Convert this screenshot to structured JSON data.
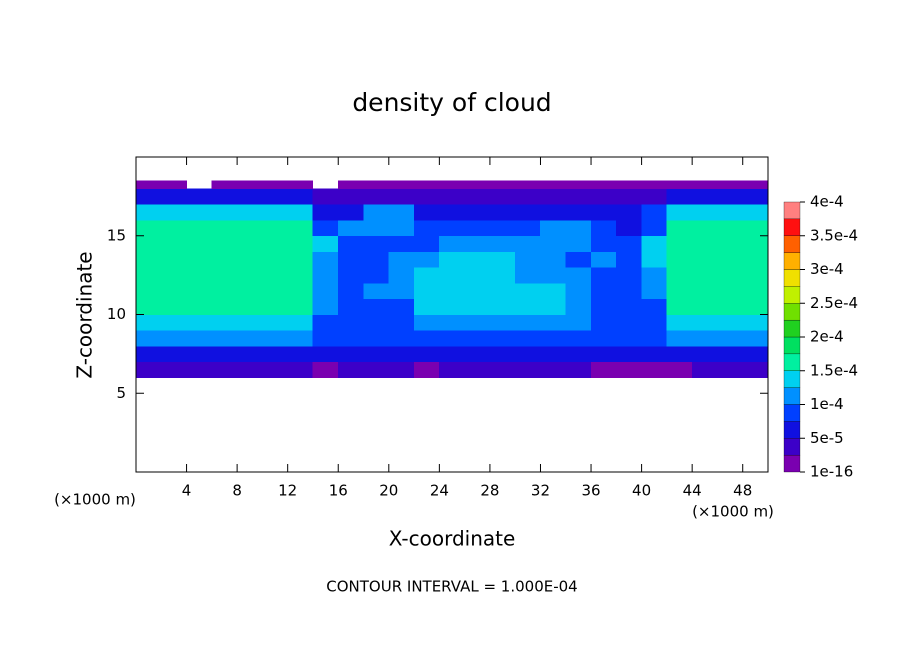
{
  "chart_data": {
    "type": "contour",
    "title": "density of cloud",
    "x_label": "X-coordinate",
    "y_label": "Z-coordinate",
    "x_unit": "(×1000 m)",
    "y_unit": "(×1000 m)",
    "footer": "CONTOUR INTERVAL = 1.000E-04",
    "xlim": [
      0,
      50
    ],
    "ylim": [
      0,
      20
    ],
    "xticks": [
      4,
      8,
      12,
      16,
      20,
      24,
      28,
      32,
      36,
      40,
      44,
      48
    ],
    "yticks": [
      5,
      10,
      15
    ],
    "x_edges": [
      0,
      2,
      4,
      6,
      8,
      10,
      12,
      14,
      16,
      18,
      20,
      22,
      24,
      26,
      28,
      30,
      32,
      34,
      36,
      38,
      40,
      42,
      44,
      46,
      48,
      50
    ],
    "y_edges": [
      6,
      7,
      8,
      9,
      10,
      11,
      12,
      13,
      14,
      15,
      16,
      17,
      18,
      18.5
    ],
    "values": [
      [
        3e-05,
        3e-05,
        3e-05,
        3e-05,
        3e-05,
        3e-05,
        3e-05,
        1e-05,
        3e-05,
        3e-05,
        3e-05,
        2e-05,
        3e-05,
        3e-05,
        3e-05,
        3e-05,
        3e-05,
        3e-05,
        2e-05,
        2e-05,
        2e-05,
        2e-05,
        3e-05,
        3e-05,
        3e-05
      ],
      [
        7e-05,
        7e-05,
        7e-05,
        7e-05,
        7e-05,
        7e-05,
        7e-05,
        6e-05,
        6e-05,
        6e-05,
        6e-05,
        6e-05,
        6e-05,
        6e-05,
        6e-05,
        6e-05,
        6e-05,
        6e-05,
        6e-05,
        6e-05,
        6e-05,
        7e-05,
        7e-05,
        7e-05,
        7e-05
      ],
      [
        0.00011,
        0.00011,
        0.00011,
        0.00011,
        0.00011,
        0.00011,
        0.00011,
        8e-05,
        8e-05,
        8e-05,
        8e-05,
        8e-05,
        8e-05,
        8e-05,
        8e-05,
        8e-05,
        8e-05,
        8e-05,
        8e-05,
        8e-05,
        8e-05,
        0.00011,
        0.00011,
        0.00011,
        0.00011
      ],
      [
        0.00014,
        0.00014,
        0.00014,
        0.00014,
        0.00014,
        0.00014,
        0.00014,
        9e-05,
        9e-05,
        9e-05,
        9e-05,
        0.00011,
        0.00011,
        0.00011,
        0.00011,
        0.00011,
        0.00011,
        0.00011,
        8e-05,
        8e-05,
        9e-05,
        0.00014,
        0.00014,
        0.00014,
        0.00014
      ],
      [
        0.000155,
        0.000155,
        0.000155,
        0.000155,
        0.000155,
        0.000155,
        0.000155,
        0.0001,
        9e-05,
        9e-05,
        9e-05,
        0.00013,
        0.00013,
        0.00013,
        0.00013,
        0.00013,
        0.00013,
        0.00011,
        9e-05,
        9e-05,
        9e-05,
        0.000155,
        0.000155,
        0.000155,
        0.000155
      ],
      [
        0.00016,
        0.00016,
        0.00016,
        0.00016,
        0.00016,
        0.00016,
        0.00016,
        0.00011,
        9e-05,
        0.0001,
        0.00012,
        0.00013,
        0.00013,
        0.00013,
        0.00013,
        0.00013,
        0.00013,
        0.00011,
        9e-05,
        8e-05,
        0.0001,
        0.00016,
        0.00016,
        0.00016,
        0.00016
      ],
      [
        0.00016,
        0.00016,
        0.00016,
        0.00016,
        0.00016,
        0.00016,
        0.00016,
        0.00011,
        9e-05,
        9e-05,
        0.00011,
        0.000135,
        0.000135,
        0.000135,
        0.000135,
        0.00012,
        0.00011,
        0.0001,
        9e-05,
        8e-05,
        0.00012,
        0.00016,
        0.00016,
        0.00016,
        0.00016
      ],
      [
        0.00016,
        0.00016,
        0.00016,
        0.00016,
        0.00016,
        0.00016,
        0.00016,
        0.00012,
        9e-05,
        9e-05,
        0.0001,
        0.00011,
        0.00013,
        0.00013,
        0.00013,
        0.00011,
        0.0001,
        9e-05,
        0.00011,
        9e-05,
        0.00013,
        0.00016,
        0.00016,
        0.00016,
        0.00016
      ],
      [
        0.00016,
        0.00016,
        0.00016,
        0.00016,
        0.00016,
        0.00016,
        0.00016,
        0.00013,
        8e-05,
        8e-05,
        9e-05,
        9e-05,
        0.0001,
        0.000105,
        0.000105,
        0.000105,
        0.00012,
        0.00012,
        9e-05,
        8e-05,
        0.00013,
        0.00016,
        0.00016,
        0.00016,
        0.00016
      ],
      [
        0.000155,
        0.000155,
        0.000155,
        0.000155,
        0.000155,
        0.000155,
        0.000155,
        8e-05,
        0.00011,
        0.00012,
        0.00012,
        9e-05,
        8e-05,
        9e-05,
        8e-05,
        8e-05,
        0.00011,
        0.00011,
        8e-05,
        7e-05,
        9e-05,
        0.000155,
        0.000155,
        0.000155,
        0.000155
      ],
      [
        0.00014,
        0.00014,
        0.00014,
        0.00014,
        0.00014,
        0.00014,
        0.00014,
        5e-05,
        6e-05,
        0.00011,
        0.0001,
        6e-05,
        5e-05,
        5e-05,
        6e-05,
        6e-05,
        6e-05,
        5e-05,
        5e-05,
        6e-05,
        8e-05,
        0.00014,
        0.00014,
        0.00014,
        0.00014
      ],
      [
        5e-05,
        5e-05,
        5e-05,
        5e-05,
        5e-05,
        5e-05,
        5e-05,
        3e-05,
        3e-05,
        3e-05,
        3e-05,
        3e-05,
        3e-05,
        3e-05,
        3e-05,
        3e-05,
        3e-05,
        3e-05,
        3e-05,
        3e-05,
        3e-05,
        5e-05,
        5e-05,
        5e-05,
        5e-05
      ],
      [
        2e-05,
        2e-05,
        null,
        2e-05,
        2e-05,
        2e-05,
        2e-05,
        null,
        2e-05,
        2e-05,
        2e-05,
        2e-05,
        2e-05,
        2e-05,
        2e-05,
        2e-05,
        2e-05,
        2e-05,
        2e-05,
        2e-05,
        2e-05,
        2e-05,
        2e-05,
        2e-05,
        2e-05
      ]
    ],
    "colorbar": {
      "levels": [
        1e-16,
        2.5e-05,
        5e-05,
        7.5e-05,
        0.0001,
        0.000125,
        0.00015,
        0.000175,
        0.0002,
        0.000225,
        0.00025,
        0.000275,
        0.0003,
        0.000325,
        0.00035,
        0.000375,
        0.0004
      ],
      "colors": [
        "#7a00b0",
        "#3c00c8",
        "#1010e0",
        "#0040ff",
        "#0090ff",
        "#00d0f0",
        "#00f0a0",
        "#00e060",
        "#20d020",
        "#70e000",
        "#c0f000",
        "#f0e000",
        "#ffb000",
        "#ff6000",
        "#ff1010",
        "#ff8080"
      ],
      "ticks": [
        {
          "value": 1e-16,
          "label": "1e-16"
        },
        {
          "value": 5e-05,
          "label": "5e-5"
        },
        {
          "value": 0.0001,
          "label": "1e-4"
        },
        {
          "value": 0.00015,
          "label": "1.5e-4"
        },
        {
          "value": 0.0002,
          "label": "2e-4"
        },
        {
          "value": 0.00025,
          "label": "2.5e-4"
        },
        {
          "value": 0.0003,
          "label": "3e-4"
        },
        {
          "value": 0.00035,
          "label": "3.5e-4"
        },
        {
          "value": 0.0004,
          "label": "4e-4"
        }
      ]
    }
  }
}
